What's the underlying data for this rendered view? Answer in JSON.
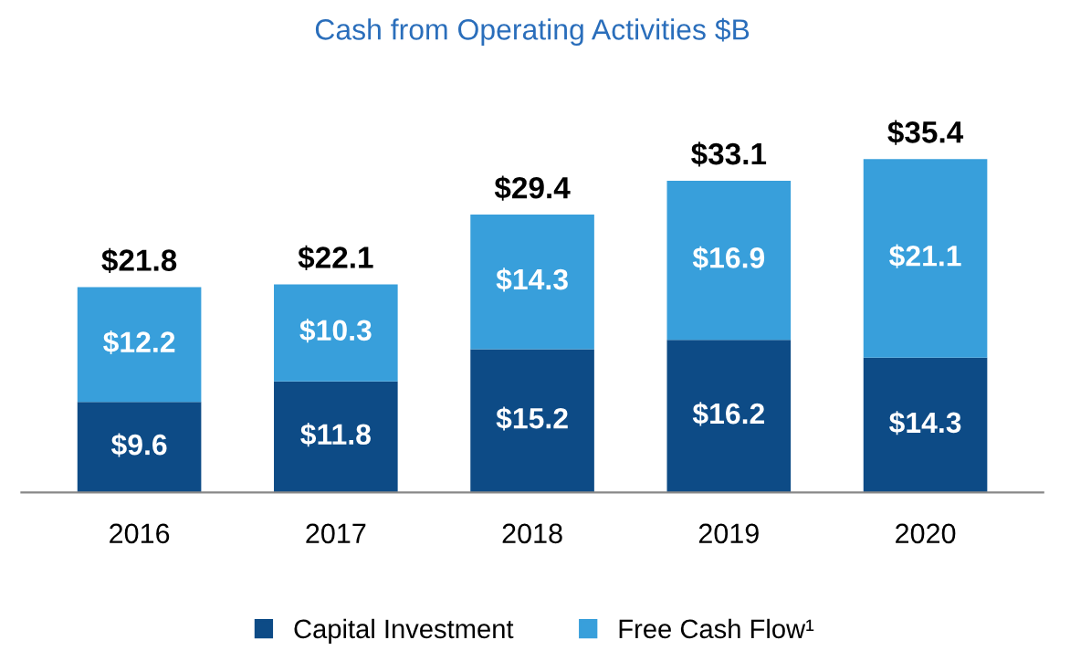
{
  "chart_data": {
    "type": "bar",
    "title": "Cash from Operating Activities $B",
    "stacked": true,
    "categories": [
      "2016",
      "2017",
      "2018",
      "2019",
      "2020"
    ],
    "series": [
      {
        "name": "Capital Investment",
        "color": "#0d4b86",
        "values": [
          9.6,
          11.8,
          15.2,
          16.2,
          14.3
        ],
        "value_labels": [
          "$9.6",
          "$11.8",
          "$15.2",
          "$16.2",
          "$14.3"
        ]
      },
      {
        "name": "Free Cash Flow¹",
        "color": "#389fdb",
        "values": [
          12.2,
          10.3,
          14.3,
          16.9,
          21.1
        ],
        "value_labels": [
          "$12.2",
          "$10.3",
          "$14.3",
          "$16.9",
          "$21.1"
        ]
      }
    ],
    "totals": [
      "$21.8",
      "$22.1",
      "$29.4",
      "$33.1",
      "$35.4"
    ],
    "legend": "bottom",
    "grid": false
  }
}
